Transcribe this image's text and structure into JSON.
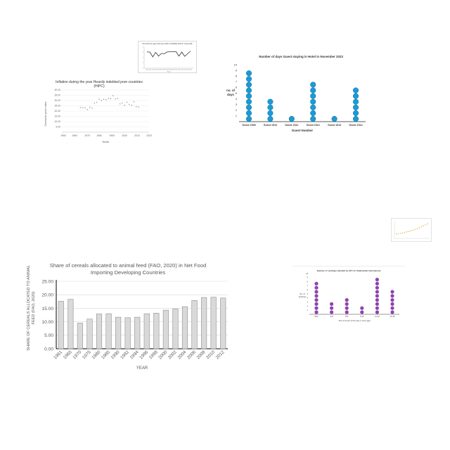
{
  "chart_data": [
    {
      "id": "tiny-line",
      "type": "line",
      "title": "Net trend for gap and price within SAHAPE 2010 in Greenville",
      "xlabel": "Years",
      "ylabel": "",
      "x": [
        "2000",
        "2001",
        "2002",
        "2003",
        "2004",
        "2005",
        "2006",
        "2007",
        "2008",
        "2009",
        "2010",
        "2011",
        "2012",
        "2013",
        "2014",
        "2015"
      ],
      "series": [
        {
          "values": [
            6.2,
            6.1,
            4.3,
            6.0,
            4.6,
            5.6,
            5.5,
            6.2,
            6.2,
            6.3,
            6.3,
            4.6,
            6.1,
            4.5,
            5.5,
            6.5
          ]
        }
      ],
      "ylim": [
        0,
        8
      ],
      "yticks": [
        "0",
        "2",
        "4",
        "6",
        "8"
      ],
      "color": "#333333",
      "grid": false
    },
    {
      "id": "inflation",
      "type": "scatter",
      "title": "Inflation during the year Heavily indebted poor countries (HIPC)",
      "xlabel": "Years",
      "ylabel": "Consumer price index",
      "points": [
        [
          1966,
          23.5
        ],
        [
          1968,
          23.4
        ],
        [
          1970,
          23.3
        ],
        [
          1972,
          21.6
        ],
        [
          1974,
          23.8
        ],
        [
          1976,
          23.0
        ],
        [
          1978,
          27.8
        ],
        [
          1980,
          28.4
        ],
        [
          1982,
          31.5
        ],
        [
          1984,
          30.2
        ],
        [
          1986,
          31.3
        ],
        [
          1988,
          31.0
        ],
        [
          1990,
          32.2
        ],
        [
          1992,
          32.0
        ],
        [
          1994,
          34.8
        ],
        [
          1996,
          31.8
        ],
        [
          1998,
          32.1
        ],
        [
          2000,
          27.0
        ],
        [
          2002,
          27.8
        ],
        [
          2004,
          25.8
        ],
        [
          2006,
          28.5
        ],
        [
          2008,
          26.5
        ],
        [
          2010,
          25.7
        ],
        [
          2012,
          29.0
        ],
        [
          2014,
          24.5
        ],
        [
          2016,
          24.0
        ]
      ],
      "xlim": [
        1950,
        2025
      ],
      "ylim": [
        0,
        40
      ],
      "xticks": [
        "1950",
        "1960",
        "1975",
        "1980",
        "1990",
        "2000",
        "2010",
        "2020"
      ],
      "yticks": [
        "5.00",
        "10.00",
        "15.00",
        "20.00",
        "25.00",
        "30.00",
        "35.00",
        "40.00"
      ],
      "color": "#a8a8a8",
      "grid": true
    },
    {
      "id": "hotel",
      "type": "dot",
      "title": "Number of days Guest staying in Hotel in November 2023",
      "xlabel": "Guest Number",
      "ylabel": "no. of days",
      "categories": [
        "Guest 1509",
        "Guest 1510",
        "Guest 1511",
        "Guest 1512",
        "Guest 1513",
        "Guest 1514"
      ],
      "values": [
        9,
        4,
        1,
        7,
        1,
        6
      ],
      "ylim": [
        0,
        10
      ],
      "yticks": [
        "1",
        "2",
        "3",
        "4",
        "5",
        "6",
        "7",
        "8",
        "9",
        "10"
      ],
      "color": "#1a9bd7",
      "grid": false
    },
    {
      "id": "tiny-scatter",
      "type": "scatter",
      "title": "",
      "points": [
        [
          1,
          2.0
        ],
        [
          2,
          2.2
        ],
        [
          3,
          2.4
        ],
        [
          4,
          2.5
        ],
        [
          5,
          2.8
        ],
        [
          6,
          3.1
        ],
        [
          7,
          3.3
        ],
        [
          8,
          3.6
        ],
        [
          9,
          3.9
        ],
        [
          10,
          4.2
        ],
        [
          11,
          4.6
        ],
        [
          12,
          5.0
        ],
        [
          13,
          5.5
        ],
        [
          14,
          5.9
        ],
        [
          15,
          6.4
        ],
        [
          16,
          6.9
        ]
      ],
      "xlim": [
        0,
        17
      ],
      "ylim": [
        0,
        8
      ],
      "color": "#e8a33a",
      "grid": true
    },
    {
      "id": "cereal",
      "type": "bar",
      "title": "Share of cereals allocated to animal feed (FAO, 2020) in Net Food Importing Developing Countries",
      "xlabel": "YEAR",
      "ylabel": "SHARE OF CEREALS ALLOCATED TO ANIMAL FEED (FAO, 2020)",
      "categories": [
        "1961",
        "1965",
        "1970",
        "1975",
        "1980",
        "1985",
        "1990",
        "1992",
        "1994",
        "1996",
        "1998",
        "2000",
        "2002",
        "2004",
        "2006",
        "2008",
        "2010",
        "2012"
      ],
      "values": [
        17.6,
        18.3,
        9.5,
        11.0,
        12.9,
        13.0,
        11.7,
        11.5,
        11.7,
        13.0,
        13.2,
        14.3,
        14.8,
        15.6,
        17.9,
        19.0,
        19.1,
        18.8
      ],
      "ylim": [
        0,
        25
      ],
      "yticks": [
        "0.00",
        "5.00",
        "10.00",
        "15.00",
        "20.00",
        "25.00"
      ],
      "color": "#d9d9d9",
      "grid": true
    },
    {
      "id": "landings",
      "type": "dot",
      "title": "Number of Landings Handled by ATC for Shallowtide International",
      "xlabel": "Time & hours of the day (1 hour gap)",
      "ylabel": "No. of landings",
      "categories": [
        "06-6",
        "6-8",
        "8-9",
        "9-11",
        "11-13",
        "13-15"
      ],
      "values": [
        8,
        3,
        4,
        2,
        9,
        6
      ],
      "ylim": [
        0,
        10
      ],
      "yticks": [
        "1",
        "2",
        "3",
        "4",
        "5",
        "6",
        "7",
        "8",
        "9",
        "10"
      ],
      "color": "#8e44ad",
      "grid": false
    }
  ]
}
